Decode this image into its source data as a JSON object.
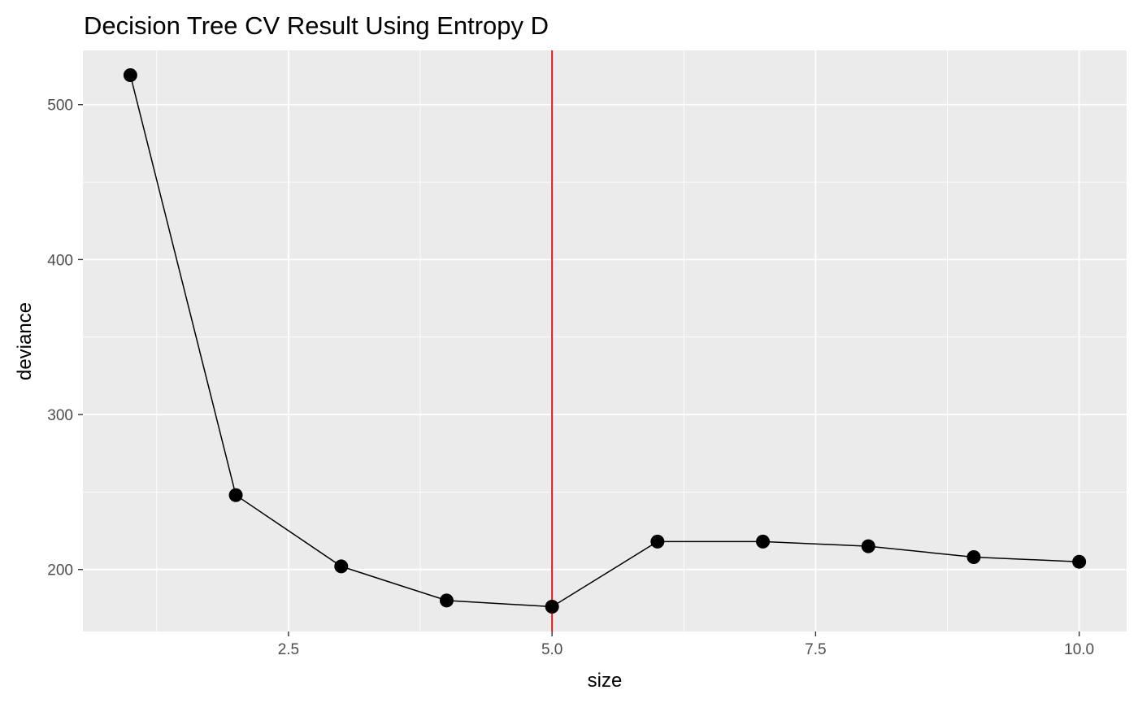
{
  "chart_data": {
    "type": "line",
    "title": "Decision Tree CV Result Using Entropy D",
    "xlabel": "size",
    "ylabel": "deviance",
    "xlim": [
      0.55,
      10.45
    ],
    "ylim": [
      160,
      535
    ],
    "x_ticks": [
      2.5,
      5.0,
      7.5,
      10.0
    ],
    "x_tick_labels": [
      "2.5",
      "5.0",
      "7.5",
      "10.0"
    ],
    "y_ticks": [
      200,
      300,
      400,
      500
    ],
    "y_tick_labels": [
      "200",
      "300",
      "400",
      "500"
    ],
    "grid": true,
    "series": [
      {
        "x": [
          1,
          2,
          3,
          4,
          5,
          6,
          7,
          8,
          9,
          10
        ],
        "values": [
          519,
          248,
          202,
          180,
          176,
          218,
          218,
          215,
          208,
          205
        ],
        "line_color": "#000000",
        "point_color": "#000000"
      }
    ],
    "vline": {
      "x": 5,
      "color": "#e41a1c"
    },
    "panel_background": "#ebebeb",
    "grid_color": "#ffffff"
  }
}
